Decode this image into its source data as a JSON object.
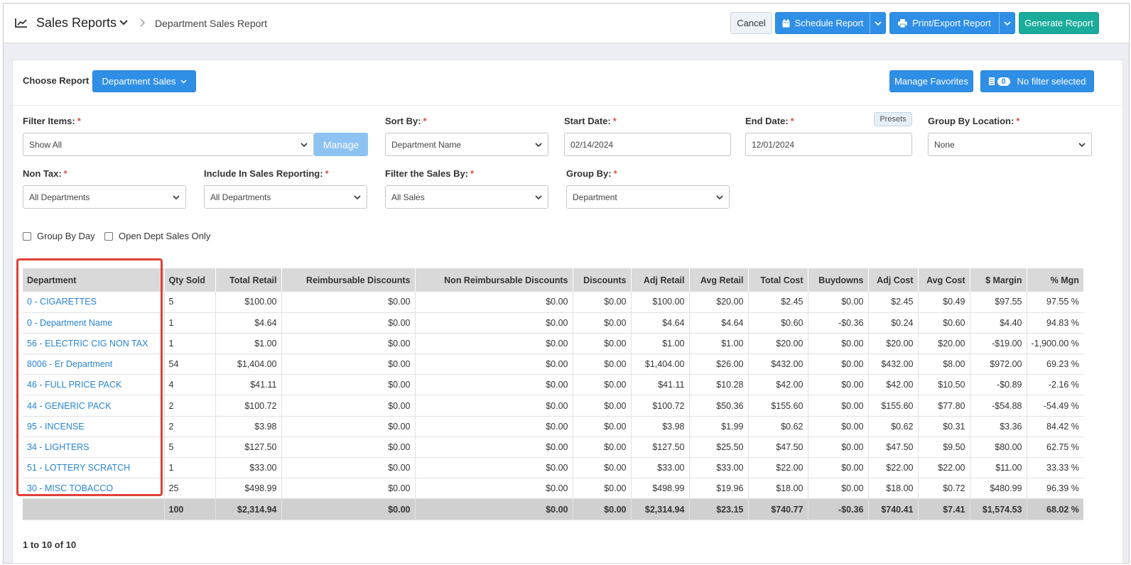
{
  "header": {
    "app_title": "Sales Reports",
    "breadcrumb": "Department Sales Report",
    "cancel_label": "Cancel",
    "schedule_label": "Schedule Report",
    "print_label": "Print/Export Report",
    "generate_label": "Generate Report"
  },
  "toolbar": {
    "choose_report_label": "Choose Report",
    "report_select": "Department Sales",
    "manage_favorites_label": "Manage Favorites",
    "filter_count": "0",
    "filter_label": "No filter selected"
  },
  "filters": {
    "filter_items": {
      "label": "Filter Items:",
      "value": "Show All",
      "manage_label": "Manage"
    },
    "sort_by": {
      "label": "Sort By:",
      "value": "Department Name"
    },
    "start_date": {
      "label": "Start Date:",
      "value": "02/14/2024"
    },
    "end_date": {
      "label": "End Date:",
      "value": "12/01/2024",
      "presets_label": "Presets"
    },
    "group_by_location": {
      "label": "Group By Location:",
      "value": "None"
    },
    "non_tax": {
      "label": "Non Tax:",
      "value": "All Departments"
    },
    "include_in_sales": {
      "label": "Include In Sales Reporting:",
      "value": "All Departments"
    },
    "filter_sales_by": {
      "label": "Filter the Sales By:",
      "value": "All Sales"
    },
    "group_by": {
      "label": "Group By:",
      "value": "Department"
    },
    "required_mark": "*"
  },
  "options": {
    "group_by_day": {
      "label": "Group By Day",
      "checked": false
    },
    "open_dept_only": {
      "label": "Open Dept Sales Only",
      "checked": false
    }
  },
  "table": {
    "columns": [
      "Department",
      "Qty Sold",
      "Total Retail",
      "Reimbursable Discounts",
      "Non Reimbursable Discounts",
      "Discounts",
      "Adj Retail",
      "Avg Retail",
      "Total Cost",
      "Buydowns",
      "Adj Cost",
      "Avg Cost",
      "$ Margin",
      "% Mgn"
    ],
    "rows": [
      [
        "0 - CIGARETTES",
        "5",
        "$100.00",
        "$0.00",
        "$0.00",
        "$0.00",
        "$100.00",
        "$20.00",
        "$2.45",
        "$0.00",
        "$2.45",
        "$0.49",
        "$97.55",
        "97.55 %"
      ],
      [
        "0 - Department Name",
        "1",
        "$4.64",
        "$0.00",
        "$0.00",
        "$0.00",
        "$4.64",
        "$4.64",
        "$0.60",
        "-$0.36",
        "$0.24",
        "$0.60",
        "$4.40",
        "94.83 %"
      ],
      [
        "56 - ELECTRIC CIG NON TAX",
        "1",
        "$1.00",
        "$0.00",
        "$0.00",
        "$0.00",
        "$1.00",
        "$1.00",
        "$20.00",
        "$0.00",
        "$20.00",
        "$20.00",
        "-$19.00",
        "-1,900.00 %"
      ],
      [
        "8006 - Er Department",
        "54",
        "$1,404.00",
        "$0.00",
        "$0.00",
        "$0.00",
        "$1,404.00",
        "$26.00",
        "$432.00",
        "$0.00",
        "$432.00",
        "$8.00",
        "$972.00",
        "69.23 %"
      ],
      [
        "46 - FULL PRICE PACK",
        "4",
        "$41.11",
        "$0.00",
        "$0.00",
        "$0.00",
        "$41.11",
        "$10.28",
        "$42.00",
        "$0.00",
        "$42.00",
        "$10.50",
        "-$0.89",
        "-2.16 %"
      ],
      [
        "44 - GENERIC PACK",
        "2",
        "$100.72",
        "$0.00",
        "$0.00",
        "$0.00",
        "$100.72",
        "$50.36",
        "$155.60",
        "$0.00",
        "$155.60",
        "$77.80",
        "-$54.88",
        "-54.49 %"
      ],
      [
        "95 - INCENSE",
        "2",
        "$3.98",
        "$0.00",
        "$0.00",
        "$0.00",
        "$3.98",
        "$1.99",
        "$0.62",
        "$0.00",
        "$0.62",
        "$0.31",
        "$3.36",
        "84.42 %"
      ],
      [
        "34 - LIGHTERS",
        "5",
        "$127.50",
        "$0.00",
        "$0.00",
        "$0.00",
        "$127.50",
        "$25.50",
        "$47.50",
        "$0.00",
        "$47.50",
        "$9.50",
        "$80.00",
        "62.75 %"
      ],
      [
        "51 - LOTTERY SCRATCH",
        "1",
        "$33.00",
        "$0.00",
        "$0.00",
        "$0.00",
        "$33.00",
        "$33.00",
        "$22.00",
        "$0.00",
        "$22.00",
        "$22.00",
        "$11.00",
        "33.33 %"
      ],
      [
        "30 - MISC TOBACCO",
        "25",
        "$498.99",
        "$0.00",
        "$0.00",
        "$0.00",
        "$498.99",
        "$19.96",
        "$18.00",
        "$0.00",
        "$18.00",
        "$0.72",
        "$480.99",
        "96.39 %"
      ]
    ],
    "totals": [
      "",
      "100",
      "$2,314.94",
      "$0.00",
      "$0.00",
      "$0.00",
      "$2,314.94",
      "$23.15",
      "$740.77",
      "-$0.36",
      "$740.41",
      "$7.41",
      "$1,574.53",
      "68.02 %"
    ]
  },
  "pager": {
    "summary": "1 to 10 of 10"
  },
  "colors": {
    "primary": "#2f8fe6",
    "teal": "#1aab9b",
    "highlight": "#e0403a",
    "link": "#2a85d0"
  }
}
